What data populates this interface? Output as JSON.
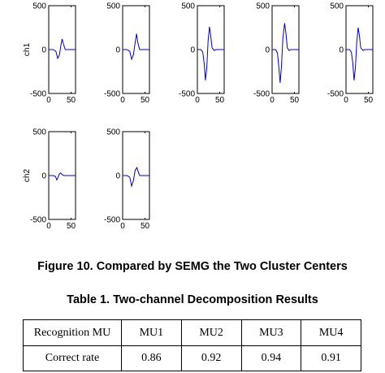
{
  "figure_caption": "Figure 10. Compared by SEMG the Two Cluster Centers",
  "table_caption": "Table 1. Two-channel Decomposition Results",
  "table": {
    "header_label": "Recognition MU",
    "columns": [
      "MU1",
      "MU2",
      "MU3",
      "MU4"
    ],
    "row_label": "Correct rate",
    "values": [
      "0.86",
      "0.92",
      "0.94",
      "0.91"
    ]
  },
  "chart_data": [
    {
      "type": "line",
      "ylabel": "ch1",
      "xlim": [
        0,
        60
      ],
      "ylim": [
        -500,
        500
      ],
      "xticks": [
        "0",
        "50"
      ],
      "yticks": [
        "500",
        "0",
        "-500"
      ],
      "line_color": "#0000cc",
      "series": [
        {
          "x": [
            0,
            10,
            16,
            20,
            24,
            27,
            30,
            33,
            37,
            40,
            60
          ],
          "y": [
            0,
            0,
            -20,
            -100,
            -60,
            40,
            120,
            60,
            0,
            0,
            0
          ]
        }
      ]
    },
    {
      "type": "line",
      "ylabel": "",
      "xlim": [
        0,
        60
      ],
      "ylim": [
        -500,
        500
      ],
      "xticks": [
        "0",
        "50"
      ],
      "yticks": [
        "500",
        "0",
        "-500"
      ],
      "line_color": "#0000cc",
      "series": [
        {
          "x": [
            0,
            10,
            16,
            20,
            24,
            27,
            31,
            34,
            38,
            41,
            60
          ],
          "y": [
            0,
            0,
            -20,
            -110,
            -60,
            40,
            180,
            80,
            0,
            0,
            0
          ]
        }
      ]
    },
    {
      "type": "line",
      "ylabel": "",
      "xlim": [
        0,
        60
      ],
      "ylim": [
        -500,
        500
      ],
      "xticks": [
        "0",
        "50"
      ],
      "yticks": [
        "500",
        "0",
        "-500"
      ],
      "line_color": "#0000cc",
      "series": [
        {
          "x": [
            0,
            8,
            12,
            15,
            18,
            21,
            24,
            27,
            30,
            33,
            38,
            42,
            60
          ],
          "y": [
            0,
            0,
            -30,
            -150,
            -350,
            -200,
            100,
            260,
            150,
            20,
            -10,
            0,
            0
          ]
        }
      ]
    },
    {
      "type": "line",
      "ylabel": "",
      "xlim": [
        0,
        60
      ],
      "ylim": [
        -500,
        500
      ],
      "xticks": [
        "0",
        "50"
      ],
      "yticks": [
        "500",
        "0",
        "-500"
      ],
      "line_color": "#0000cc",
      "series": [
        {
          "x": [
            0,
            8,
            12,
            15,
            18,
            21,
            24,
            28,
            31,
            34,
            38,
            42,
            60
          ],
          "y": [
            0,
            0,
            -40,
            -200,
            -380,
            -180,
            120,
            300,
            180,
            20,
            -10,
            0,
            0
          ]
        }
      ]
    },
    {
      "type": "line",
      "ylabel": "",
      "xlim": [
        0,
        60
      ],
      "ylim": [
        -500,
        500
      ],
      "xticks": [
        "0",
        "50"
      ],
      "yticks": [
        "500",
        "0",
        "-500"
      ],
      "line_color": "#0000cc",
      "series": [
        {
          "x": [
            0,
            8,
            12,
            15,
            18,
            21,
            24,
            27,
            30,
            33,
            38,
            42,
            60
          ],
          "y": [
            0,
            0,
            -30,
            -150,
            -350,
            -200,
            80,
            250,
            160,
            20,
            -10,
            0,
            0
          ]
        }
      ]
    },
    {
      "type": "line",
      "ylabel": "ch2",
      "xlim": [
        0,
        60
      ],
      "ylim": [
        -500,
        500
      ],
      "xticks": [
        "0",
        "50"
      ],
      "yticks": [
        "500",
        "0",
        "-500"
      ],
      "line_color": "#0000cc",
      "series": [
        {
          "x": [
            0,
            10,
            15,
            18,
            21,
            24,
            27,
            30,
            34,
            40,
            60
          ],
          "y": [
            0,
            0,
            -10,
            -50,
            -20,
            20,
            30,
            10,
            0,
            0,
            0
          ]
        }
      ]
    },
    {
      "type": "line",
      "ylabel": "",
      "xlim": [
        0,
        60
      ],
      "ylim": [
        -500,
        500
      ],
      "xticks": [
        "0",
        "50"
      ],
      "yticks": [
        "500",
        "0",
        "-500"
      ],
      "line_color": "#0000cc",
      "series": [
        {
          "x": [
            0,
            10,
            16,
            20,
            24,
            28,
            32,
            35,
            38,
            42,
            60
          ],
          "y": [
            0,
            0,
            -20,
            -120,
            -60,
            60,
            90,
            40,
            0,
            0,
            0
          ]
        }
      ]
    }
  ]
}
